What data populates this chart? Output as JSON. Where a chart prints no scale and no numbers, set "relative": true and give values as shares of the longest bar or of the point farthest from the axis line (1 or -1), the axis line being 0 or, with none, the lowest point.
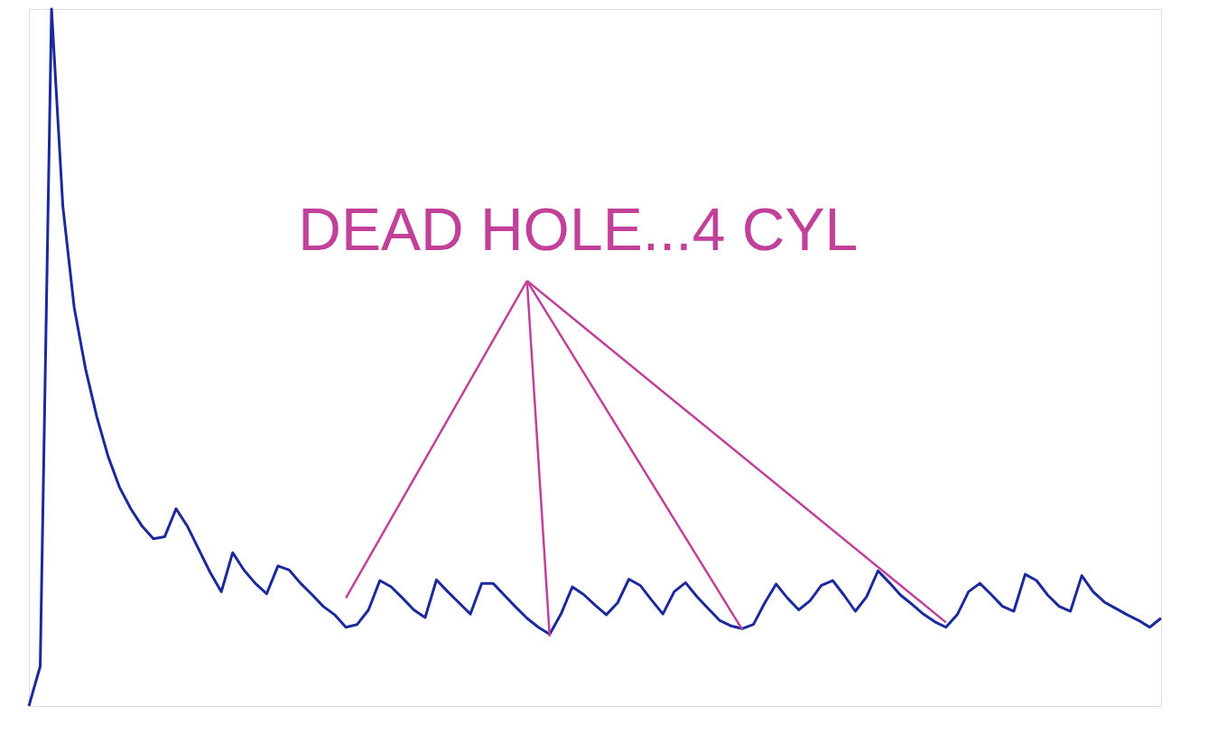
{
  "chart_data": {
    "type": "line",
    "relative": true,
    "legend": false,
    "tick_labels": false,
    "categories": [
      null,
      null,
      null,
      null,
      null,
      null,
      null,
      null,
      null,
      null,
      null,
      null,
      null,
      null,
      null,
      null,
      null,
      null,
      null,
      null,
      null,
      null,
      null,
      null,
      null,
      null,
      null,
      null,
      null,
      null,
      null,
      null,
      null,
      null,
      null,
      null,
      null,
      null,
      null,
      null,
      null,
      null,
      null,
      null,
      null,
      null,
      null,
      null,
      null,
      null,
      null,
      null,
      null,
      null,
      null,
      null,
      null,
      null,
      null,
      null,
      null,
      null,
      null,
      null,
      null,
      null,
      null,
      null,
      null,
      null,
      null,
      null,
      null,
      null,
      null,
      null,
      null,
      null,
      null,
      null,
      null,
      null,
      null,
      null,
      null,
      null,
      null,
      null,
      null,
      null,
      null,
      null,
      null,
      null,
      null,
      null,
      null,
      null,
      null,
      null,
      null
    ],
    "series": [
      {
        "color": "#1a2a9c",
        "values": [
          0,
          0.057,
          1.0,
          0.717,
          0.572,
          0.484,
          0.415,
          0.358,
          0.314,
          0.283,
          0.258,
          0.24,
          0.243,
          0.283,
          0.258,
          0.225,
          0.192,
          0.164,
          0.22,
          0.195,
          0.176,
          0.161,
          0.201,
          0.195,
          0.176,
          0.16,
          0.143,
          0.131,
          0.113,
          0.117,
          0.138,
          0.18,
          0.171,
          0.155,
          0.138,
          0.127,
          0.181,
          0.164,
          0.148,
          0.132,
          0.176,
          0.176,
          0.159,
          0.142,
          0.126,
          0.113,
          0.103,
          0.132,
          0.171,
          0.16,
          0.145,
          0.131,
          0.148,
          0.182,
          0.173,
          0.152,
          0.132,
          0.164,
          0.177,
          0.157,
          0.14,
          0.123,
          0.115,
          0.111,
          0.117,
          0.148,
          0.175,
          0.155,
          0.138,
          0.151,
          0.173,
          0.18,
          0.159,
          0.136,
          0.157,
          0.194,
          0.177,
          0.159,
          0.146,
          0.132,
          0.121,
          0.113,
          0.131,
          0.164,
          0.176,
          0.16,
          0.143,
          0.136,
          0.189,
          0.18,
          0.159,
          0.143,
          0.136,
          0.187,
          0.164,
          0.149,
          0.14,
          0.131,
          0.123,
          0.113,
          0.126
        ]
      }
    ],
    "annotations": [
      "DEAD HOLE...4 CYL"
    ]
  }
}
